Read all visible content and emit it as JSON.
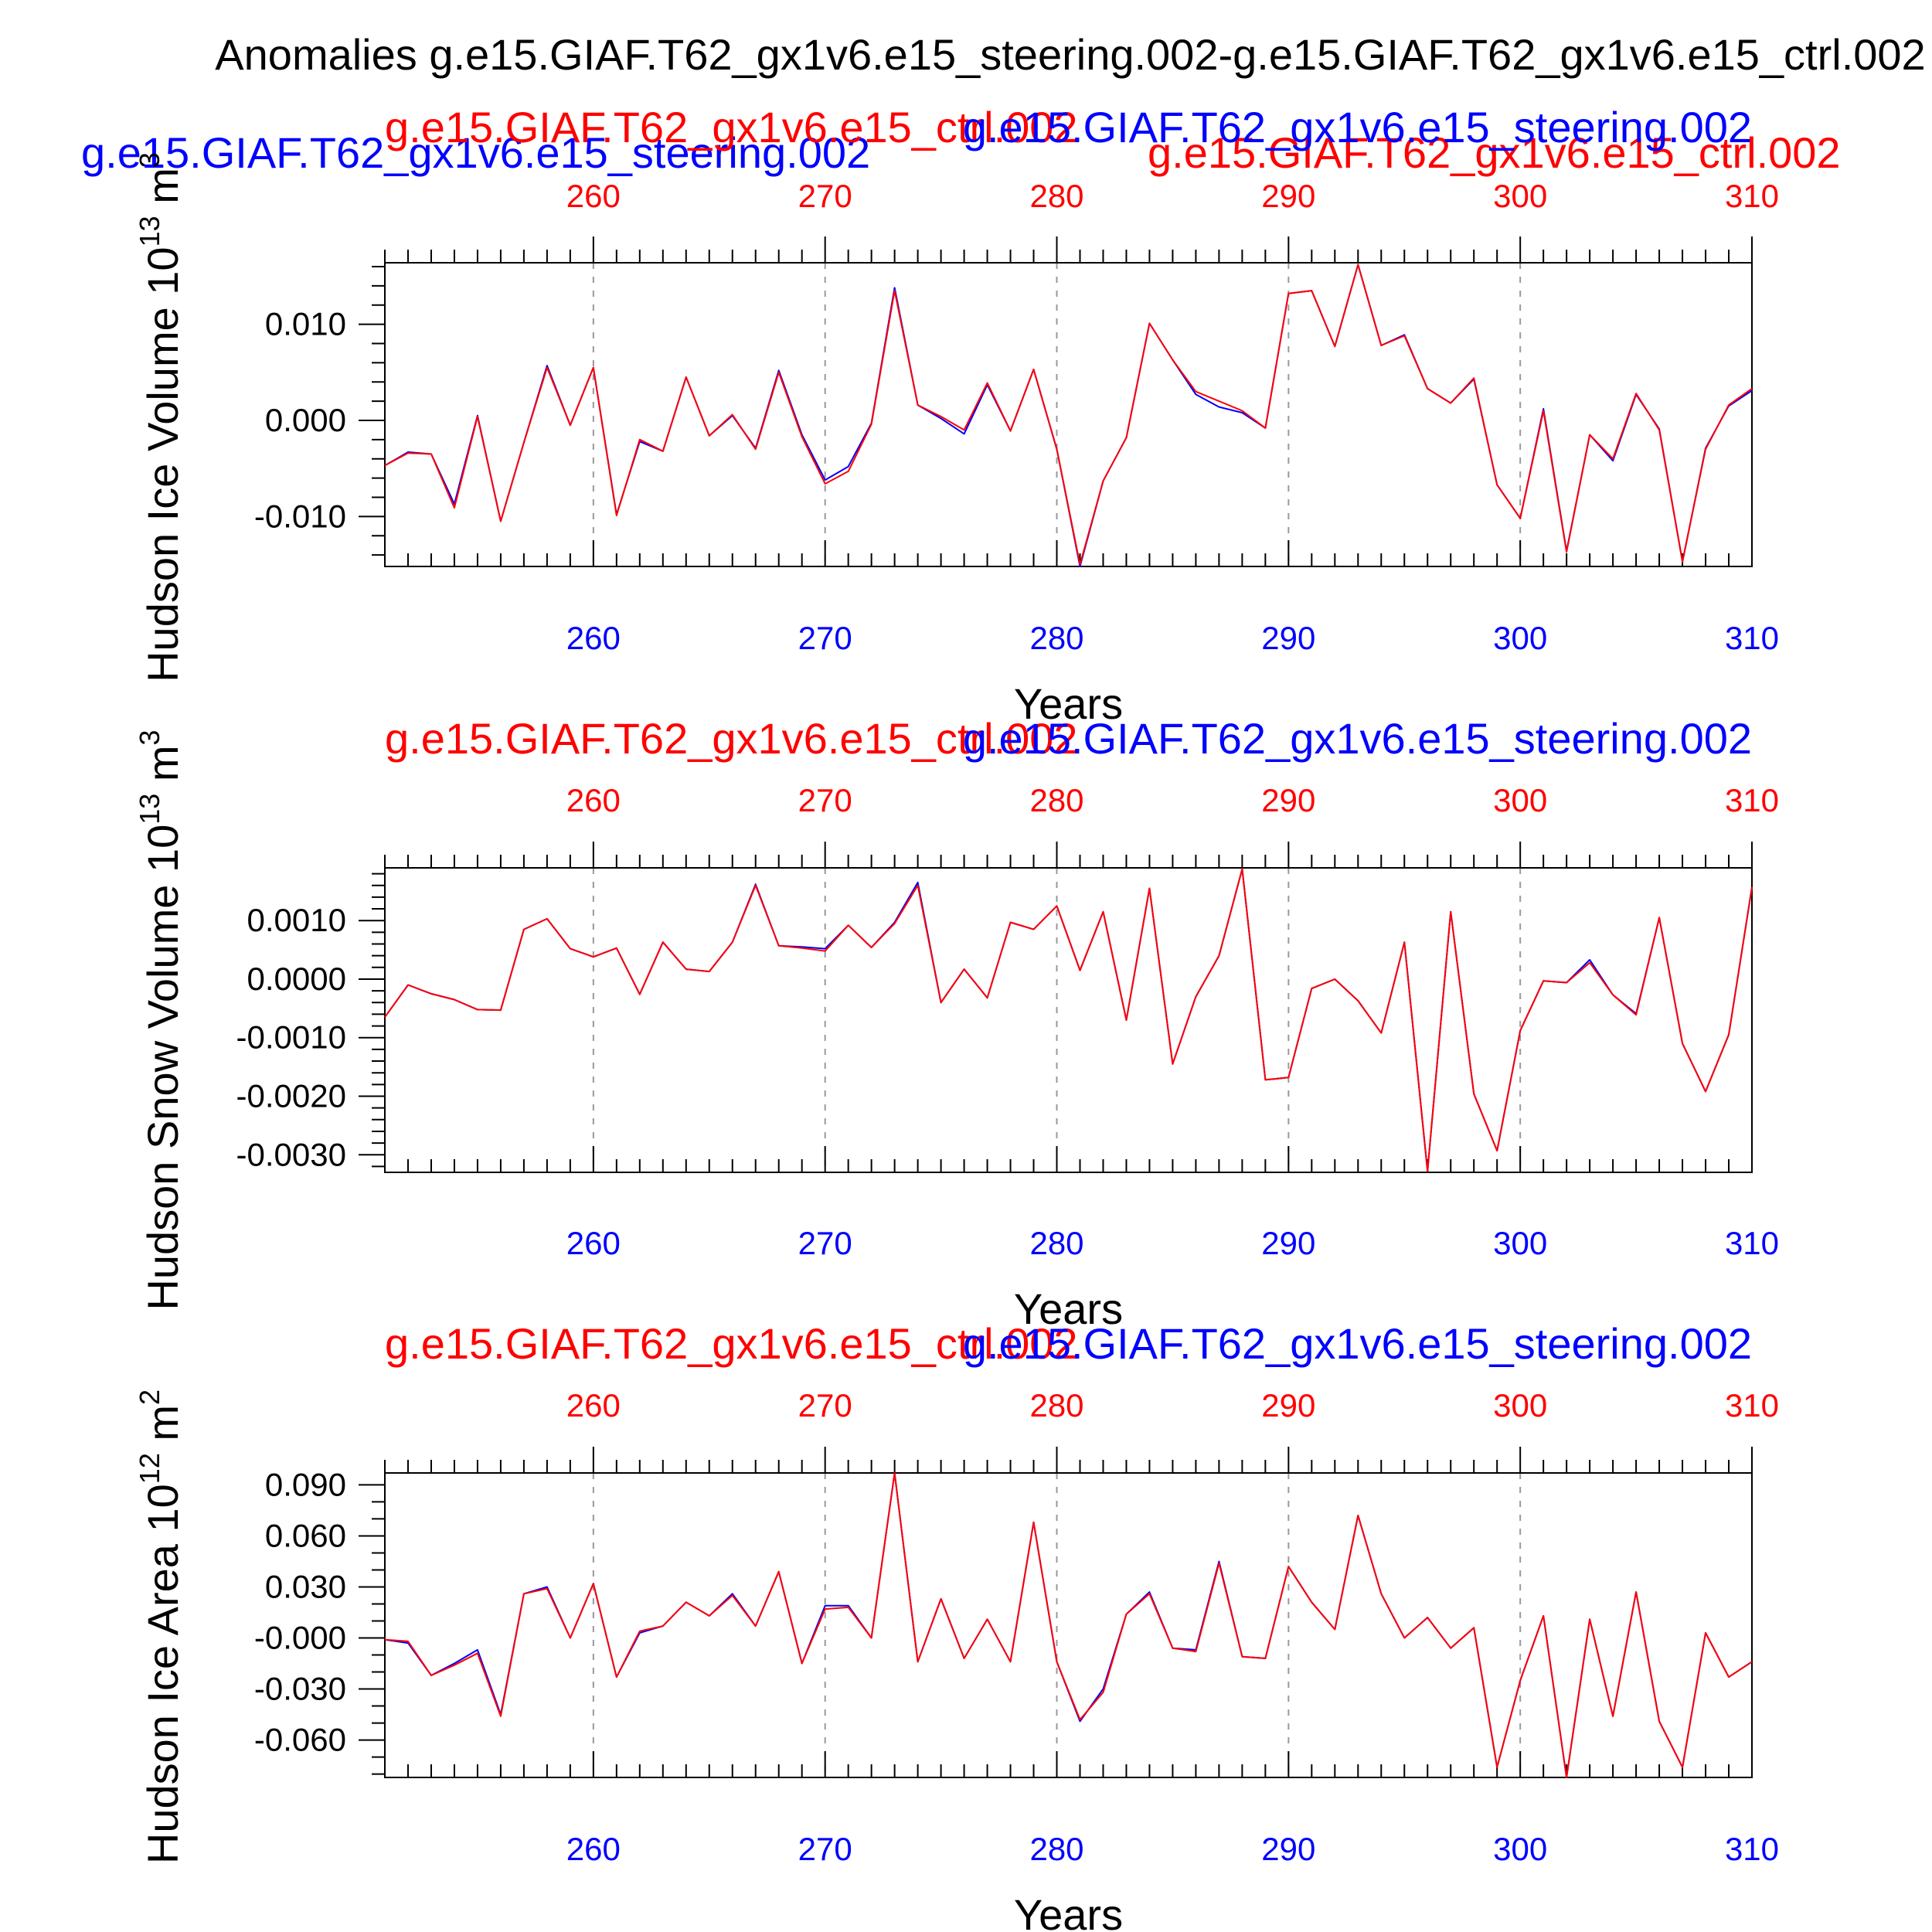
{
  "page_title": "Anomalies g.e15.GIAF.T62_gx1v6.e15_steering.002-g.e15.GIAF.T62_gx1v6.e15_ctrl.002",
  "legend": {
    "steering": "g.e15.GIAF.T62_gx1v6.e15_steering.002",
    "ctrl": "g.e15.GIAF.T62_gx1v6.e15_ctrl.002"
  },
  "colors": {
    "steering": "#0000ff",
    "ctrl": "#ff0000",
    "axis": "#000000",
    "grid": "#999999"
  },
  "chart_data": [
    {
      "type": "line",
      "ylabel": "Hudson Ice Volume 10",
      "yunit_exp": "13",
      "yunit_tail": " m",
      "yunit_sup2": "3",
      "xlabel": "Years",
      "top_label_ctrl": "g.e15.GIAF.T62_gx1v6.e15_ctrl.002",
      "top_label_steering": "g.e15.GIAF.T62_gx1v6.e15_steering.002",
      "xlim": [
        251,
        310
      ],
      "ylim": [
        -0.0152,
        0.0164
      ],
      "xticks": [
        260,
        270,
        280,
        290,
        300,
        310
      ],
      "xtick_labels": [
        "260",
        "270",
        "280",
        "290",
        "300",
        "310"
      ],
      "yticks": [
        0.01,
        0.0,
        -0.01
      ],
      "ytick_labels": [
        "0.010",
        "0.000",
        "-0.010"
      ],
      "ymin_step": 0.002,
      "x_start": 251,
      "series": [
        {
          "name": "g.e15.GIAF.T62_gx1v6.e15_steering.002",
          "color": "#0000ff",
          "values": [
            -0.0047,
            -0.0033,
            -0.0035,
            -0.0087,
            0.0005,
            -0.0105,
            -0.0023,
            0.0057,
            -0.0005,
            0.0055,
            -0.0098,
            -0.0022,
            -0.0032,
            0.0045,
            -0.0016,
            0.0005,
            -0.0029,
            0.0052,
            -0.0015,
            -0.0062,
            -0.0048,
            -0.0003,
            0.0138,
            0.0016,
            0.0002,
            -0.0014,
            0.0037,
            -0.0011,
            0.0053,
            -0.003,
            -0.0152,
            -0.0063,
            -0.0018,
            0.0101,
            0.0063,
            0.0027,
            0.0014,
            0.0008,
            -0.0008,
            0.0132,
            0.0135,
            0.0077,
            0.0162,
            0.0078,
            0.0089,
            0.0033,
            0.0018,
            0.0043,
            -0.0067,
            -0.0102,
            0.0012,
            -0.0136,
            -0.0015,
            -0.0042,
            0.0027,
            -0.0009,
            -0.0147,
            -0.0029,
            0.0015,
            0.0031
          ]
        },
        {
          "name": "g.e15.GIAF.T62_gx1v6.e15_ctrl.002",
          "color": "#ff0000",
          "values": [
            -0.0047,
            -0.0034,
            -0.0035,
            -0.0091,
            0.0004,
            -0.0105,
            -0.0023,
            0.0055,
            -0.0005,
            0.0055,
            -0.0099,
            -0.002,
            -0.0032,
            0.0045,
            -0.0016,
            0.0006,
            -0.003,
            0.005,
            -0.0017,
            -0.0066,
            -0.0053,
            -0.0004,
            0.0135,
            0.0016,
            0.0004,
            -0.001,
            0.0039,
            -0.0011,
            0.0053,
            -0.003,
            -0.015,
            -0.0063,
            -0.0018,
            0.0101,
            0.0063,
            0.003,
            0.002,
            0.001,
            -0.0008,
            0.0132,
            0.0135,
            0.0077,
            0.0162,
            0.0078,
            0.0088,
            0.0033,
            0.0018,
            0.0044,
            -0.0067,
            -0.0102,
            0.001,
            -0.0137,
            -0.0015,
            -0.004,
            0.0028,
            -0.001,
            -0.0147,
            -0.003,
            0.0016,
            0.0033
          ]
        }
      ]
    },
    {
      "type": "line",
      "ylabel": "Hudson Snow Volume 10",
      "yunit_exp": "13",
      "yunit_tail": " m",
      "yunit_sup2": "3",
      "xlabel": "Years",
      "top_label_ctrl": "g.e15.GIAF.T62_gx1v6.e15_ctrl.002",
      "top_label_steering": "g.e15.GIAF.T62_gx1v6.e15_steering.002",
      "xlim": [
        251,
        310
      ],
      "ylim": [
        -0.0033,
        0.0019
      ],
      "xticks": [
        260,
        270,
        280,
        290,
        300,
        310
      ],
      "xtick_labels": [
        "260",
        "270",
        "280",
        "290",
        "300",
        "310"
      ],
      "yticks": [
        0.001,
        0.0,
        -0.001,
        -0.002,
        -0.003
      ],
      "ytick_labels": [
        "0.0010",
        "0.0000",
        "-0.0010",
        "-0.0020",
        "-0.0030"
      ],
      "ymin_step": 0.0002,
      "x_start": 251,
      "series": [
        {
          "name": "g.e15.GIAF.T62_gx1v6.e15_steering.002",
          "color": "#0000ff",
          "values": [
            -0.00065,
            -0.0001,
            -0.00025,
            -0.00035,
            -0.00052,
            -0.00053,
            0.00085,
            0.00103,
            0.00052,
            0.00038,
            0.00053,
            -0.00026,
            0.00063,
            0.00017,
            0.00013,
            0.00063,
            0.00162,
            0.00057,
            0.00055,
            0.00052,
            0.00092,
            0.00054,
            0.00097,
            0.00165,
            -0.0004,
            0.00017,
            -0.00032,
            0.00097,
            0.00085,
            0.00125,
            0.00015,
            0.00115,
            -0.0007,
            0.00155,
            -0.00145,
            -0.0003,
            0.0004,
            0.00188,
            -0.00172,
            -0.00168,
            -0.00016,
            0.0,
            -0.00037,
            -0.00092,
            0.00063,
            -0.00328,
            0.00115,
            -0.00196,
            -0.00293,
            -0.00088,
            -3e-05,
            -6e-05,
            0.00033,
            -0.00027,
            -0.00059,
            0.00105,
            -0.0011,
            -0.00192,
            -0.00095,
            0.00157
          ]
        },
        {
          "name": "g.e15.GIAF.T62_gx1v6.e15_ctrl.002",
          "color": "#ff0000",
          "values": [
            -0.00065,
            -0.0001,
            -0.00025,
            -0.00035,
            -0.00052,
            -0.00053,
            0.00085,
            0.00103,
            0.00052,
            0.00038,
            0.00053,
            -0.00026,
            0.00063,
            0.00017,
            0.00013,
            0.00063,
            0.0016,
            0.00057,
            0.00053,
            0.00048,
            0.00092,
            0.00054,
            0.00095,
            0.0016,
            -0.0004,
            0.00017,
            -0.00032,
            0.00097,
            0.00085,
            0.00125,
            0.00015,
            0.00115,
            -0.0007,
            0.00155,
            -0.00145,
            -0.0003,
            0.0004,
            0.00188,
            -0.00172,
            -0.00168,
            -0.00016,
            0.0,
            -0.00037,
            -0.00092,
            0.00063,
            -0.00328,
            0.00115,
            -0.00196,
            -0.00293,
            -0.00088,
            -3e-05,
            -6e-05,
            0.00028,
            -0.00027,
            -0.00061,
            0.00105,
            -0.0011,
            -0.00192,
            -0.00095,
            0.00157
          ]
        }
      ]
    },
    {
      "type": "line",
      "ylabel": "Hudson Ice Area 10",
      "yunit_exp": "12",
      "yunit_tail": " m",
      "yunit_sup2": "2",
      "xlabel": "Years",
      "top_label_ctrl": "g.e15.GIAF.T62_gx1v6.e15_ctrl.002",
      "top_label_steering": "g.e15.GIAF.T62_gx1v6.e15_steering.002",
      "xlim": [
        251,
        310
      ],
      "ylim": [
        -0.082,
        0.097
      ],
      "xticks": [
        260,
        270,
        280,
        290,
        300,
        310
      ],
      "xtick_labels": [
        "260",
        "270",
        "280",
        "290",
        "300",
        "310"
      ],
      "yticks": [
        0.09,
        0.06,
        0.03,
        0.0,
        -0.03,
        -0.06
      ],
      "ytick_labels": [
        "0.090",
        "0.060",
        "0.030",
        "-0.000",
        "-0.030",
        "-0.060"
      ],
      "ymin_step": 0.01,
      "x_start": 251,
      "series": [
        {
          "name": "g.e15.GIAF.T62_gx1v6.e15_steering.002",
          "color": "#0000ff",
          "values": [
            -0.001,
            -0.003,
            -0.022,
            -0.015,
            -0.007,
            -0.045,
            0.026,
            0.03,
            0.0,
            0.032,
            -0.023,
            0.003,
            0.007,
            0.021,
            0.013,
            0.026,
            0.007,
            0.039,
            -0.015,
            0.019,
            0.019,
            0.0,
            0.097,
            -0.014,
            0.023,
            -0.012,
            0.011,
            -0.014,
            0.068,
            -0.014,
            -0.049,
            -0.03,
            0.014,
            0.027,
            -0.006,
            -0.007,
            0.045,
            -0.011,
            -0.012,
            0.042,
            0.021,
            0.005,
            0.072,
            0.026,
            0.0,
            0.012,
            -0.006,
            0.006,
            -0.076,
            -0.025,
            0.013,
            -0.082,
            0.011,
            -0.046,
            0.027,
            -0.049,
            -0.076,
            0.003,
            -0.023,
            -0.014
          ]
        },
        {
          "name": "g.e15.GIAF.T62_gx1v6.e15_ctrl.002",
          "color": "#ff0000",
          "values": [
            -0.001,
            -0.002,
            -0.022,
            -0.016,
            -0.009,
            -0.046,
            0.026,
            0.029,
            0.0,
            0.032,
            -0.023,
            0.004,
            0.007,
            0.021,
            0.013,
            0.025,
            0.007,
            0.039,
            -0.015,
            0.017,
            0.018,
            0.0,
            0.097,
            -0.014,
            0.023,
            -0.012,
            0.011,
            -0.014,
            0.068,
            -0.014,
            -0.048,
            -0.032,
            0.014,
            0.026,
            -0.006,
            -0.008,
            0.044,
            -0.011,
            -0.012,
            0.042,
            0.021,
            0.005,
            0.072,
            0.026,
            0.0,
            0.012,
            -0.006,
            0.006,
            -0.076,
            -0.025,
            0.013,
            -0.082,
            0.011,
            -0.046,
            0.027,
            -0.049,
            -0.076,
            0.003,
            -0.023,
            -0.014
          ]
        }
      ]
    }
  ]
}
